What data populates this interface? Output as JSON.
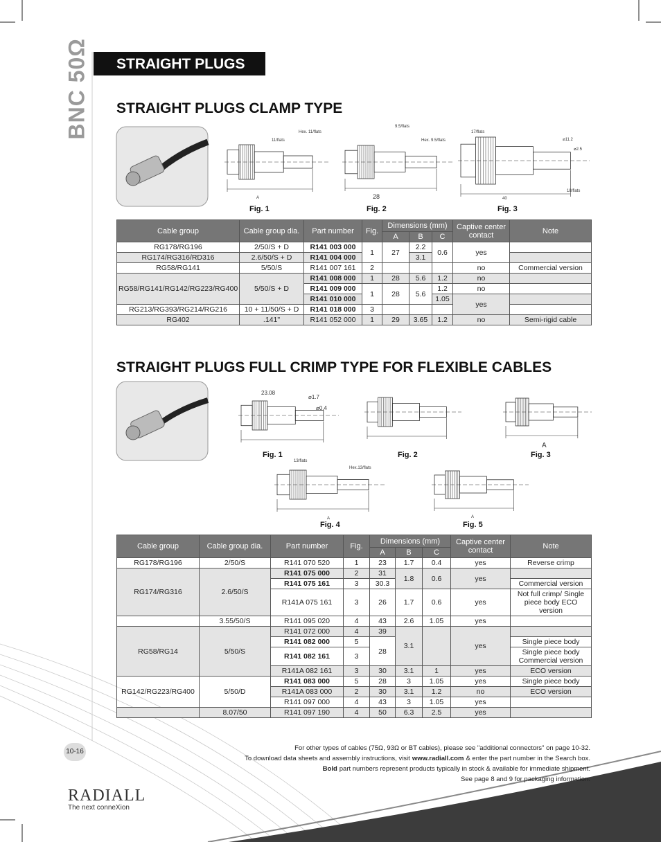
{
  "side_label": "BNC 50Ω",
  "banner": "STRAIGHT PLUGS",
  "sections": [
    {
      "title": "STRAIGHT PLUGS CLAMP TYPE",
      "figures": [
        {
          "label": "Fig. 1",
          "callouts": [
            "11/flats",
            "Hex. 11/flats",
            "A"
          ]
        },
        {
          "label": "Fig. 2",
          "callouts": [
            "9.5/flats",
            "Hex. 9.5/flats",
            "28"
          ]
        },
        {
          "label": "Fig. 3",
          "callouts": [
            "17/flats",
            "⌀11.2",
            "⌀2.5",
            "18/flats",
            "40"
          ]
        }
      ],
      "table": {
        "headers": [
          "Cable group",
          "Cable group dia.",
          "Part number",
          "Fig.",
          "Dimensions (mm)",
          "Captive center contact",
          "Note"
        ],
        "dims": [
          "A",
          "B",
          "C"
        ],
        "rows": [
          {
            "cable_group": "RG178/RG196",
            "dia": "2/50/S + D",
            "part": "R141 003 000",
            "fig": "1",
            "a": "27",
            "b": "2.2",
            "c": "0.6",
            "captive": "yes"
          },
          {
            "cable_group": "RG174/RG316/RD316",
            "dia": "2.6/50/S + D",
            "part": "R141 004 000",
            "b": "3.1"
          },
          {
            "cable_group": "RG58/RG141",
            "dia": "5/50/S",
            "part": "R141 007 161",
            "fig": "2",
            "captive": "no",
            "note": "Commercial version"
          },
          {
            "cable_group": "RG58/RG141/RG142/RG223/RG400",
            "dia": "5/50/S + D",
            "part": "R141 008 000",
            "fig": "1",
            "a": "28",
            "b": "5.6",
            "c": "1.2",
            "captive": "no"
          },
          {
            "part": "R141 009 000",
            "fig": "1",
            "a": "28",
            "b": "5.6",
            "c": "1.2",
            "captive": "no"
          },
          {
            "part": "R141 010 000",
            "c": "1.05",
            "captive": "yes"
          },
          {
            "cable_group": "RG213/RG393/RG214/RG216",
            "dia": "10 + 11/50/S + D",
            "part": "R141 018 000",
            "fig": "3"
          },
          {
            "cable_group": "RG402",
            "dia": ".141\"",
            "part": "R141 052 000",
            "fig": "1",
            "a": "29",
            "b": "3.65",
            "c": "1.2",
            "captive": "no",
            "note": "Semi-rigid cable"
          }
        ]
      }
    },
    {
      "title": "STRAIGHT PLUGS FULL CRIMP TYPE FOR FLEXIBLE CABLES",
      "figures": [
        {
          "label": "Fig. 1",
          "callouts": [
            "23.08",
            "⌀1.7",
            "⌀0.4"
          ]
        },
        {
          "label": "Fig. 2"
        },
        {
          "label": "Fig. 3",
          "callouts": [
            "A"
          ]
        },
        {
          "label": "Fig. 4",
          "callouts": [
            "13/flats",
            "Hex.13/flats",
            "A"
          ]
        },
        {
          "label": "Fig. 5",
          "callouts": [
            "A"
          ]
        }
      ],
      "table": {
        "headers": [
          "Cable group",
          "Cable group dia.",
          "Part number",
          "Fig.",
          "Dimensions (mm)",
          "Captive center contact",
          "Note"
        ],
        "dims": [
          "A",
          "B",
          "C"
        ],
        "rows": [
          {
            "cable_group": "RG178/RG196",
            "dia": "2/50/S",
            "part": "R141 070 520",
            "fig": "1",
            "a": "23",
            "b": "1.7",
            "c": "0.4",
            "captive": "yes",
            "note": "Reverse crimp"
          },
          {
            "cable_group": "RG174/RG316",
            "dia": "2.6/50/S",
            "part": "R141 075 000",
            "fig": "2",
            "a": "31",
            "b": "1.8",
            "c": "0.6",
            "captive": "yes"
          },
          {
            "part": "R141 075 161",
            "fig": "3",
            "a": "30.3",
            "note": "Commercial version"
          },
          {
            "part": "R141A 075 161",
            "fig": "3",
            "a": "26",
            "b": "1.7",
            "c": "0.6",
            "captive": "yes",
            "note": "Not full crimp/ Single piece body ECO version"
          },
          {
            "dia": "3.55/50/S",
            "part": "R141 095 020",
            "fig": "4",
            "a": "43",
            "b": "2.6",
            "c": "1.05",
            "captive": "yes"
          },
          {
            "cable_group": "RG58/RG14",
            "dia": "5/50/S",
            "part": "R141 072 000",
            "fig": "4",
            "a": "39",
            "b": "3.1",
            "captive": "yes"
          },
          {
            "part": "R141 082 000",
            "fig": "5",
            "a": "28",
            "note": "Single piece body"
          },
          {
            "part": "R141 082 161",
            "fig": "3",
            "note": "Single piece body Commercial version"
          },
          {
            "part": "R141A 082 161",
            "fig": "3",
            "a": "30",
            "b": "3.1",
            "c": "1",
            "captive": "yes",
            "note": "ECO version"
          },
          {
            "cable_group": "RG142/RG223/RG400",
            "dia": "5/50/D",
            "part": "R141 083 000",
            "fig": "5",
            "a": "28",
            "b": "3",
            "c": "1.05",
            "captive": "yes",
            "note": "Single piece body"
          },
          {
            "part": "R141A 083 000",
            "fig": "2",
            "a": "30",
            "b": "3.1",
            "c": "1.2",
            "captive": "no",
            "note": "ECO version"
          },
          {
            "part": "R141 097 000",
            "fig": "4",
            "a": "43",
            "b": "3",
            "c": "1.05",
            "captive": "yes"
          },
          {
            "dia": "8.07/50",
            "part": "R141 097 190",
            "fig": "4",
            "a": "50",
            "b": "6.3",
            "c": "2.5",
            "captive": "yes"
          }
        ]
      }
    }
  ],
  "footer": {
    "note1": "For other types of cables (75Ω, 93Ω or BT cables), please see \"additional connectors\" on page 10-32.",
    "note2_before": "To download data sheets and assembly instructions, visit",
    "note2_link": "www.radiall.com",
    "note2_after": "& enter the part number in the Search box.",
    "note3_bold": "Bold",
    "note3_rest": "part numbers represent products typically in stock & available for immediate shipment.",
    "note4": "See page 8 and 9 for packaging information."
  },
  "page_number": "10-16",
  "logo": {
    "name": "RADIALL",
    "tagline": "The next conneXion"
  }
}
